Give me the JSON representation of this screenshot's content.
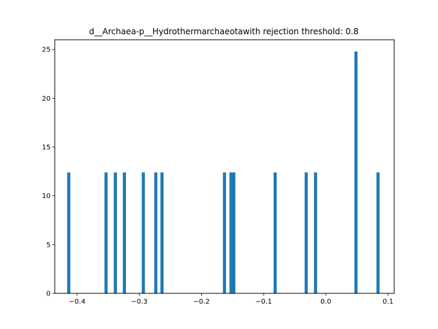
{
  "chart_data": {
    "type": "bar",
    "title": "d__Archaea-p__Hydrothermarchaeotawith rejection threshold: 0.8",
    "xlabel": "",
    "ylabel": "",
    "xlim": [
      -0.436,
      0.11
    ],
    "ylim": [
      0,
      26
    ],
    "bin_width": 0.005,
    "x_ticks": [
      -0.4,
      -0.3,
      -0.2,
      -0.1,
      0.0,
      0.1
    ],
    "x_tick_labels": [
      "−0.4",
      "−0.3",
      "−0.2",
      "−0.1",
      "0.0",
      "0.1"
    ],
    "y_ticks": [
      0,
      5,
      10,
      15,
      20,
      25
    ],
    "y_tick_labels": [
      "0",
      "5",
      "10",
      "15",
      "20",
      "25"
    ],
    "grid": false,
    "bar_color": "#1f77b4",
    "x": [
      -0.4135,
      -0.3535,
      -0.3385,
      -0.324,
      -0.2935,
      -0.2735,
      -0.2635,
      -0.163,
      -0.1525,
      -0.148,
      -0.0815,
      -0.0315,
      -0.0165,
      0.0485,
      0.084
    ],
    "values": [
      12.4,
      12.4,
      12.4,
      12.4,
      12.4,
      12.4,
      12.4,
      12.4,
      12.4,
      12.4,
      12.4,
      12.4,
      12.4,
      24.8,
      12.4
    ]
  }
}
